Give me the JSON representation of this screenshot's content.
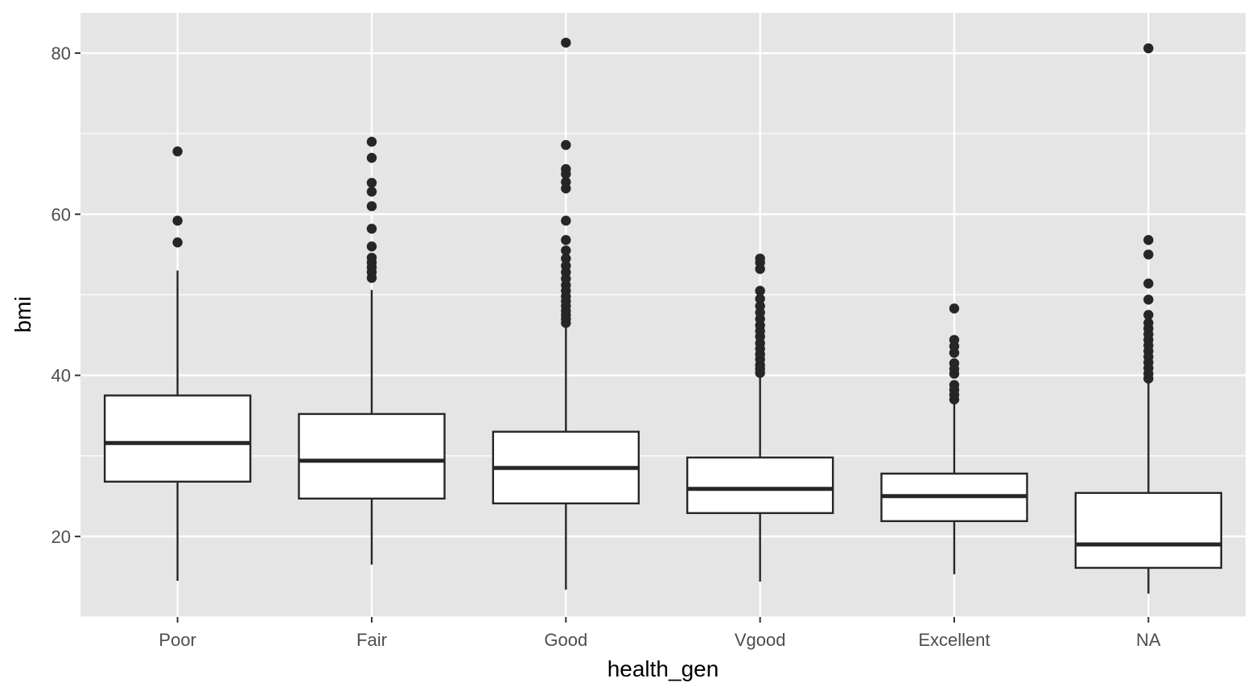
{
  "chart_data": {
    "type": "boxplot",
    "title": "",
    "xlabel": "health_gen",
    "ylabel": "bmi",
    "ylim": [
      10,
      85
    ],
    "yticks": [
      20,
      40,
      60,
      80
    ],
    "grid": true,
    "legend": "none",
    "colors": {
      "panel": "#e5e5e5",
      "grid": "#ffffff",
      "box_fill": "#ffffff",
      "stroke": "#262626",
      "text": "#4d4d4d"
    },
    "categories": [
      "Poor",
      "Fair",
      "Good",
      "Vgood",
      "Excellent",
      "NA"
    ],
    "boxes": [
      {
        "category": "Poor",
        "lower_whisker": 14.5,
        "q1": 26.8,
        "median": 31.6,
        "q3": 37.5,
        "upper_whisker": 53.0,
        "outliers": [
          56.5,
          59.2,
          67.8
        ]
      },
      {
        "category": "Fair",
        "lower_whisker": 16.5,
        "q1": 24.7,
        "median": 29.4,
        "q3": 35.2,
        "upper_whisker": 50.6,
        "outliers": [
          52.1,
          52.8,
          53.4,
          54.0,
          54.6,
          56.0,
          58.2,
          61.0,
          62.8,
          63.9,
          67.0,
          69.0
        ]
      },
      {
        "category": "Good",
        "lower_whisker": 13.4,
        "q1": 24.1,
        "median": 28.5,
        "q3": 33.0,
        "upper_whisker": 46.0,
        "outliers": [
          46.5,
          47.0,
          47.5,
          48.0,
          48.6,
          49.2,
          49.8,
          50.5,
          51.2,
          52.0,
          52.8,
          53.6,
          54.5,
          55.5,
          56.8,
          59.2,
          63.2,
          64.0,
          65.0,
          65.6,
          68.6,
          81.3
        ]
      },
      {
        "category": "Vgood",
        "lower_whisker": 14.4,
        "q1": 22.9,
        "median": 25.9,
        "q3": 29.8,
        "upper_whisker": 40.0,
        "outliers": [
          40.3,
          40.8,
          41.3,
          42.0,
          42.6,
          43.3,
          44.0,
          44.8,
          45.5,
          46.2,
          47.0,
          47.8,
          48.6,
          49.5,
          50.5,
          53.2,
          54.0,
          54.5
        ]
      },
      {
        "category": "Excellent",
        "lower_whisker": 15.3,
        "q1": 21.9,
        "median": 25.0,
        "q3": 27.8,
        "upper_whisker": 36.8,
        "outliers": [
          37.0,
          37.6,
          38.2,
          38.8,
          40.2,
          40.8,
          41.5,
          42.8,
          43.6,
          44.4,
          48.3
        ]
      },
      {
        "category": "NA",
        "lower_whisker": 12.9,
        "q1": 16.1,
        "median": 19.0,
        "q3": 25.4,
        "upper_whisker": 39.2,
        "outliers": [
          39.6,
          40.2,
          40.9,
          41.6,
          42.3,
          43.0,
          43.7,
          44.4,
          45.1,
          45.8,
          46.5,
          47.5,
          49.4,
          51.4,
          55.0,
          56.8,
          80.6
        ]
      }
    ]
  }
}
